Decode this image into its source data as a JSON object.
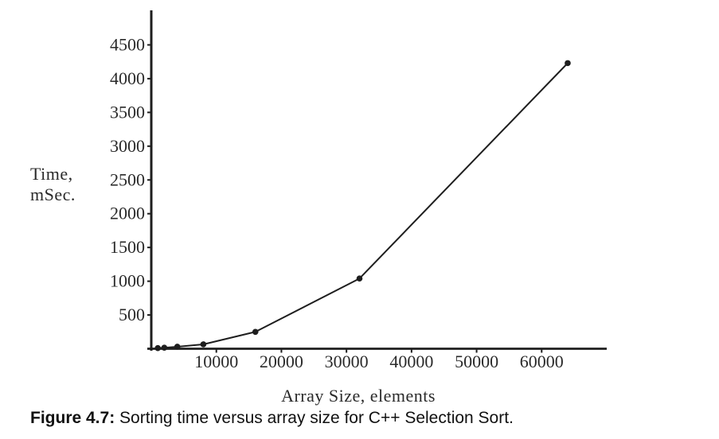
{
  "chart_data": {
    "type": "line",
    "title": "",
    "xlabel": "Array Size, elements",
    "ylabel_lines": [
      "Time,",
      "mSec."
    ],
    "series": [
      {
        "name": "C++ Selection Sort",
        "x": [
          1000,
          2000,
          4000,
          8000,
          16000,
          32000,
          64000
        ],
        "y": [
          10,
          15,
          30,
          65,
          250,
          1040,
          4230
        ]
      }
    ],
    "x_ticks": [
      10000,
      20000,
      30000,
      40000,
      50000,
      60000
    ],
    "y_ticks": [
      500,
      1000,
      1500,
      2000,
      2500,
      3000,
      3500,
      4000,
      4500
    ],
    "xlim": [
      0,
      70000
    ],
    "ylim": [
      0,
      5000
    ],
    "grid": false,
    "legend": null,
    "marker": "circle",
    "ink_color": "#1e1e1e"
  },
  "caption": {
    "label": "Figure 4.7:",
    "text": " Sorting time versus array size for C++ Selection Sort."
  }
}
